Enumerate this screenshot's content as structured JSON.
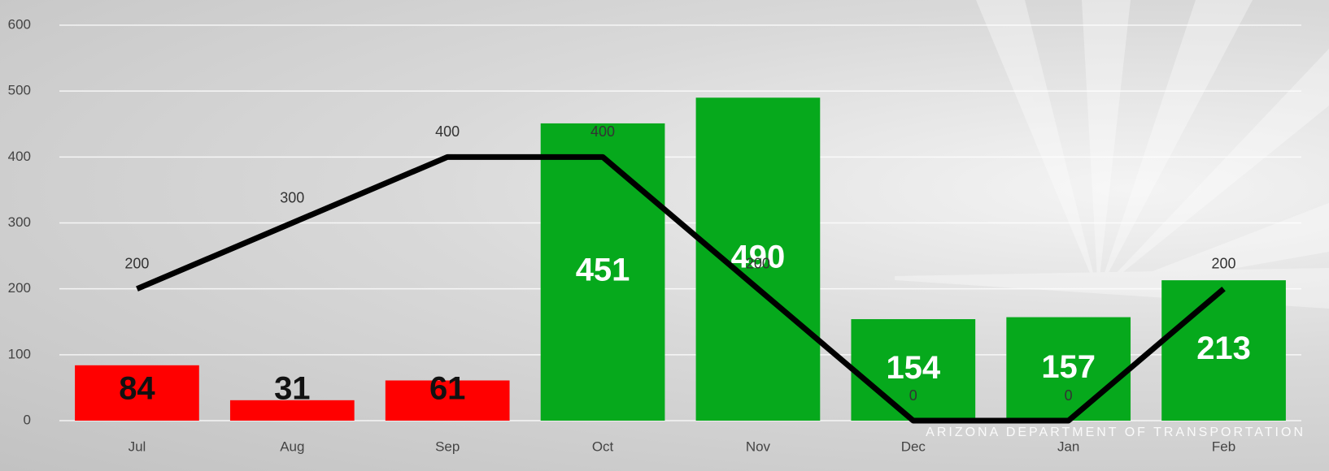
{
  "chart_data": {
    "type": "combo",
    "categories": [
      "Jul",
      "Aug",
      "Sep",
      "Oct",
      "Nov",
      "Dec",
      "Jan",
      "Feb"
    ],
    "series": [
      {
        "type": "bar",
        "values": [
          84,
          31,
          61,
          451,
          490,
          154,
          157,
          213
        ],
        "colors": [
          "#ff0000",
          "#ff0000",
          "#ff0000",
          "#06a91c",
          "#06a91c",
          "#06a91c",
          "#06a91c",
          "#06a91c"
        ],
        "label_colors": [
          "#111111",
          "#111111",
          "#111111",
          "#ffffff",
          "#ffffff",
          "#ffffff",
          "#ffffff",
          "#ffffff"
        ]
      },
      {
        "type": "line",
        "color": "#000000",
        "values": [
          200,
          300,
          400,
          400,
          200,
          0,
          0,
          200
        ]
      }
    ],
    "ylim": [
      0,
      600
    ],
    "yticks": [
      0,
      100,
      200,
      300,
      400,
      500,
      600
    ],
    "grid": true,
    "watermark": "ARIZONA DEPARTMENT OF TRANSPORTATION"
  }
}
